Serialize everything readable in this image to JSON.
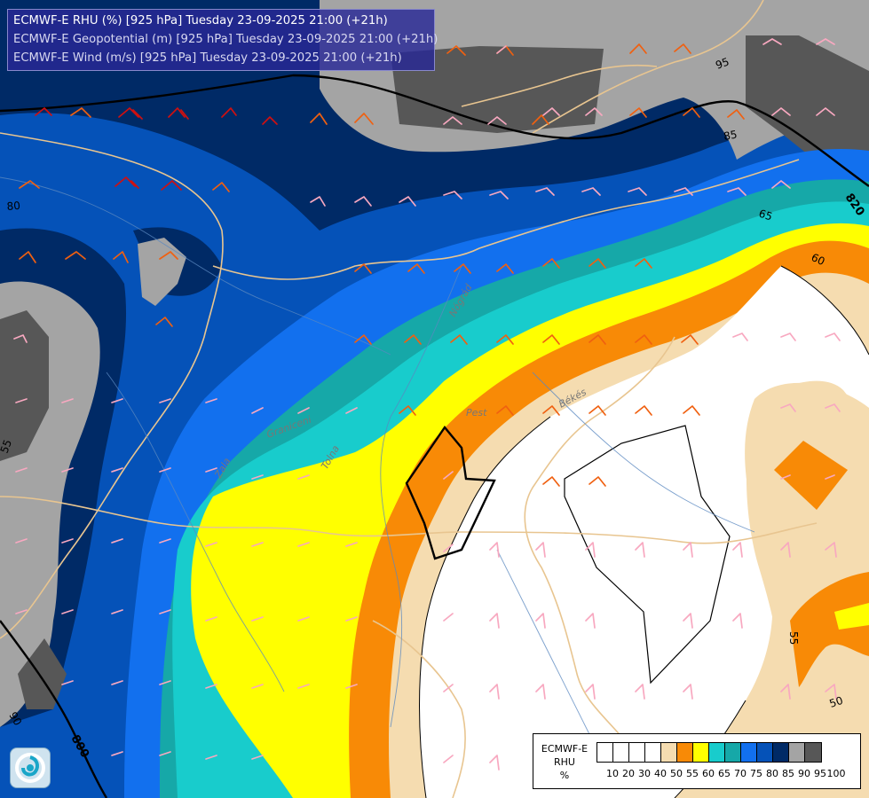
{
  "header": {
    "lines": [
      "ECMWF-E RHU (%) [925 hPa] Tuesday 23-09-2025 21:00 (+21h)",
      "ECMWF-E Geopotential (m) [925 hPa] Tuesday 23-09-2025 21:00 (+21h)",
      "ECMWF-E Wind (m/s) [925 hPa] Tuesday 23-09-2025 21:00 (+21h)"
    ]
  },
  "legend": {
    "model": "ECMWF-E",
    "variable": "RHU",
    "unit": "%",
    "ticks": [
      "10",
      "20",
      "30",
      "40",
      "50",
      "55",
      "60",
      "65",
      "70",
      "75",
      "80",
      "85",
      "90",
      "95",
      "100"
    ],
    "colors": [
      "#ffffff",
      "#ffffff",
      "#ffffff",
      "#ffffff",
      "#f5dcb0",
      "#f88a06",
      "#ffff00",
      "#18cccc",
      "#16a8a8",
      "#1270ee",
      "#0552b8",
      "#002a66",
      "#a4a4a4",
      "#575757"
    ]
  },
  "map": {
    "rhu_contour_labels": [
      {
        "text": "95"
      },
      {
        "text": "85"
      },
      {
        "text": "65"
      },
      {
        "text": "60"
      },
      {
        "text": "80"
      },
      {
        "text": "55"
      },
      {
        "text": "50"
      },
      {
        "text": "55"
      },
      {
        "text": "90"
      }
    ],
    "geopotential_labels": [
      {
        "text": "820"
      },
      {
        "text": "800"
      }
    ],
    "place_labels": [
      {
        "text": "Pest"
      },
      {
        "text": "Békés"
      },
      {
        "text": "Graniceni"
      },
      {
        "text": "Tolna"
      },
      {
        "text": "Zala"
      },
      {
        "text": "Nógrád"
      }
    ],
    "colors": {
      "rh_100": "#575757",
      "rh_95": "#a4a4a4",
      "rh_90": "#002a66",
      "rh_85": "#0552b8",
      "rh_80": "#1270ee",
      "rh_75": "#16a8a8",
      "rh_70": "#18cccc",
      "rh_65": "#ffff00",
      "rh_60": "#f88a06",
      "rh_55": "#f5dcb0",
      "rh_low": "#ffffff",
      "border": "#e8c590",
      "river": "#5a88c0",
      "barb_red": "#d01010",
      "barb_orange": "#f06010",
      "barb_pink": "#f8a8c0"
    }
  }
}
